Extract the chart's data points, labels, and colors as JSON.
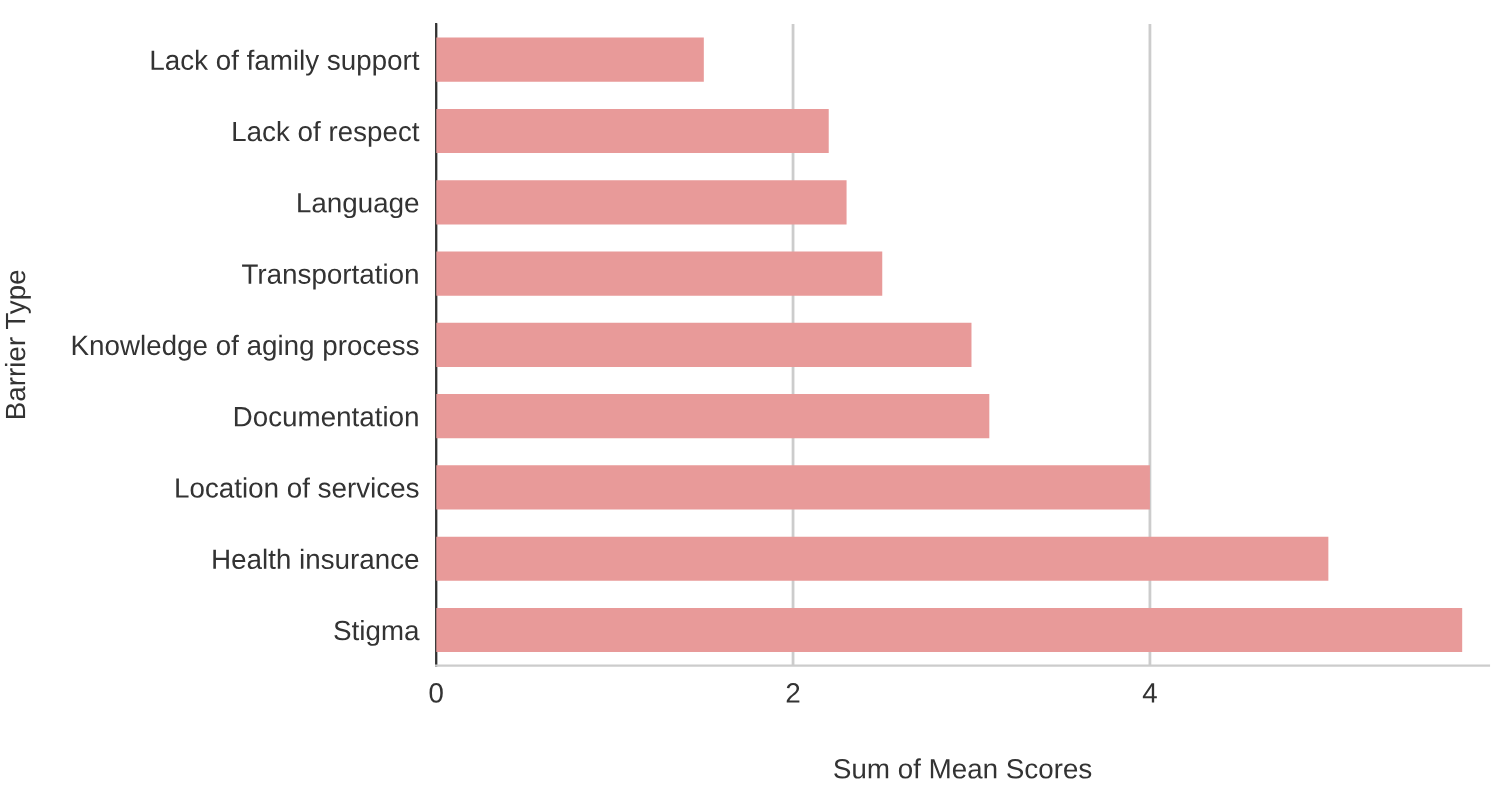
{
  "chart_data": {
    "type": "bar",
    "orientation": "horizontal",
    "xlabel": "Sum of Mean Scores",
    "ylabel": "Barrier Type",
    "categories": [
      "Lack of family support",
      "Lack of respect",
      "Language",
      "Transportation",
      "Knowledge of aging process",
      "Documentation",
      "Location of services",
      "Health insurance",
      "Stigma"
    ],
    "values": [
      1.5,
      2.2,
      2.3,
      2.5,
      3.0,
      3.1,
      4.0,
      5.0,
      5.75
    ],
    "color": "#e89a99",
    "xlim": [
      0,
      5.9
    ],
    "xticks": [
      0,
      2,
      4
    ],
    "grid": "x"
  }
}
